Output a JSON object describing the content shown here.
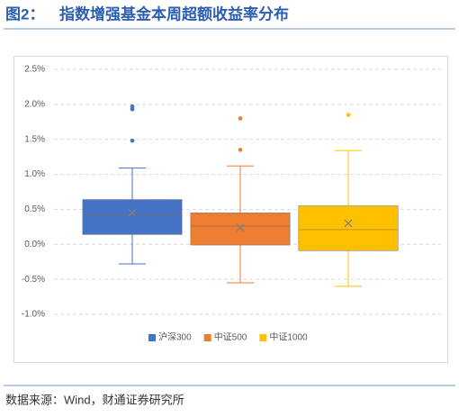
{
  "header": {
    "figure_label": "图2：",
    "title": "指数增强基金本周超额收益率分布"
  },
  "chart_data": {
    "type": "box",
    "ylim": [
      -1.0,
      2.5
    ],
    "yticks": [
      {
        "value": -1.0,
        "label": "-1.0%"
      },
      {
        "value": -0.5,
        "label": "-0.5%"
      },
      {
        "value": 0.0,
        "label": "0.0%"
      },
      {
        "value": 0.5,
        "label": "0.5%"
      },
      {
        "value": 1.0,
        "label": "1.0%"
      },
      {
        "value": 1.5,
        "label": "1.5%"
      },
      {
        "value": 2.0,
        "label": "2.0%"
      },
      {
        "value": 2.5,
        "label": "2.5%"
      }
    ],
    "grid": true,
    "legend": "bottom",
    "series": [
      {
        "name": "沪深300",
        "color": "#4472c4",
        "whisker_low": -0.28,
        "q1": 0.14,
        "median": 0.41,
        "q3": 0.64,
        "whisker_high": 1.09,
        "mean": 0.45,
        "outliers": [
          1.48,
          1.93,
          1.97
        ]
      },
      {
        "name": "中证500",
        "color": "#ed7d31",
        "whisker_low": -0.55,
        "q1": -0.01,
        "median": 0.26,
        "q3": 0.45,
        "whisker_high": 1.12,
        "mean": 0.24,
        "outliers": [
          1.35,
          1.8
        ]
      },
      {
        "name": "中证1000",
        "color": "#ffc000",
        "whisker_low": -0.6,
        "q1": -0.09,
        "median": 0.21,
        "q3": 0.55,
        "whisker_high": 1.34,
        "mean": 0.3,
        "outliers": [
          1.85
        ]
      }
    ]
  },
  "footer": {
    "source": "数据来源：Wind，财通证券研究所"
  }
}
